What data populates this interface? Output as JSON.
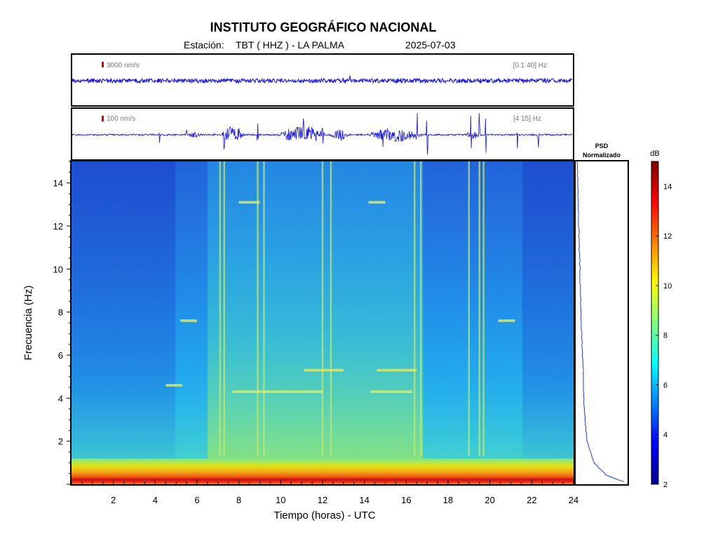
{
  "header": {
    "institute": "INSTITUTO GEOGRÁFICO NACIONAL",
    "station_label": "Estación:",
    "station": "TBT ( HHZ ) - LA PALMA",
    "date": "2025-07-03"
  },
  "trace_broadband": {
    "scale_label": "3000 nm/s",
    "band_label": "[0.1 40] Hz"
  },
  "trace_filtered": {
    "scale_label": "100 nm/s",
    "band_label": "[4 15] Hz"
  },
  "psd_panel": {
    "title_line1": "PSD",
    "title_line2": "Normalizado"
  },
  "colorbar": {
    "unit": "dB",
    "min": 2,
    "max": 15,
    "ticks": [
      "2",
      "4",
      "6",
      "8",
      "10",
      "12",
      "14"
    ],
    "tick_values": [
      2,
      4,
      6,
      8,
      10,
      12,
      14
    ]
  },
  "chart_data": {
    "type": "heatmap",
    "title": "INSTITUTO GEOGRÁFICO NACIONAL",
    "subtitle": "Estación:  TBT ( HHZ ) - LA PALMA  2025-07-03",
    "xlabel": "Tiempo (horas) - UTC",
    "ylabel": "Frecuencia  (Hz)",
    "xlim": [
      0,
      24
    ],
    "ylim": [
      0,
      15
    ],
    "x_ticks": [
      "2",
      "4",
      "6",
      "8",
      "10",
      "12",
      "14",
      "16",
      "18",
      "20",
      "22",
      "24"
    ],
    "x_tick_values": [
      2,
      4,
      6,
      8,
      10,
      12,
      14,
      16,
      18,
      20,
      22,
      24
    ],
    "y_ticks": [
      "2",
      "4",
      "6",
      "8",
      "10",
      "12",
      "14"
    ],
    "y_tick_values": [
      2,
      4,
      6,
      8,
      10,
      12,
      14
    ],
    "colorscale": "jet",
    "noisy_period_hours": [
      6.5,
      16.8
    ],
    "quiet_period_hours": [
      [
        0,
        5.0
      ],
      [
        21.5,
        24
      ]
    ],
    "low_frequency_band_hz": [
      0,
      1.2
    ],
    "vertical_events_hours": [
      7.1,
      7.3,
      8.9,
      9.2,
      12.0,
      12.4,
      16.4,
      16.7,
      19.0,
      19.5,
      19.7
    ],
    "horizontal_tones": [
      {
        "freq_hz": 5.3,
        "hours": [
          11.1,
          13.0
        ]
      },
      {
        "freq_hz": 5.3,
        "hours": [
          14.6,
          16.5
        ]
      },
      {
        "freq_hz": 4.3,
        "hours": [
          7.7,
          12.0
        ]
      },
      {
        "freq_hz": 4.3,
        "hours": [
          14.3,
          16.3
        ]
      },
      {
        "freq_hz": 7.6,
        "hours": [
          5.2,
          6.0
        ]
      },
      {
        "freq_hz": 7.6,
        "hours": [
          20.4,
          21.2
        ]
      },
      {
        "freq_hz": 4.6,
        "hours": [
          4.5,
          5.3
        ]
      },
      {
        "freq_hz": 13.1,
        "hours": [
          8.0,
          9.0
        ]
      },
      {
        "freq_hz": 13.1,
        "hours": [
          14.2,
          15.0
        ]
      }
    ],
    "psd_normalized_shape": [
      {
        "freq_hz": 0.1,
        "value": 0.95
      },
      {
        "freq_hz": 0.4,
        "value": 0.6
      },
      {
        "freq_hz": 1.0,
        "value": 0.35
      },
      {
        "freq_hz": 2.0,
        "value": 0.22
      },
      {
        "freq_hz": 3.0,
        "value": 0.18
      },
      {
        "freq_hz": 4.0,
        "value": 0.16
      },
      {
        "freq_hz": 5.0,
        "value": 0.15
      },
      {
        "freq_hz": 6.0,
        "value": 0.13
      },
      {
        "freq_hz": 8.0,
        "value": 0.1
      },
      {
        "freq_hz": 10.0,
        "value": 0.08
      },
      {
        "freq_hz": 12.0,
        "value": 0.06
      },
      {
        "freq_hz": 14.0,
        "value": 0.04
      },
      {
        "freq_hz": 15.0,
        "value": 0.03
      }
    ]
  }
}
